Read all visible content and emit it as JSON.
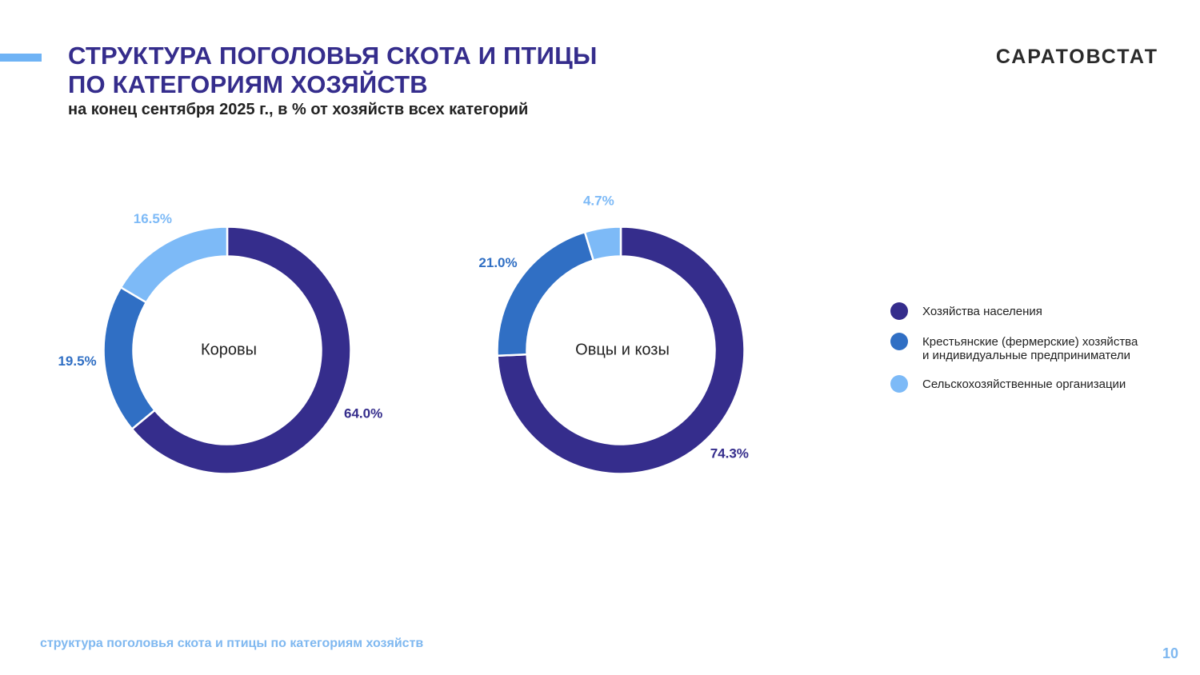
{
  "header": {
    "title_line1": "СТРУКТУРА ПОГОЛОВЬЯ СКОТА И ПТИЦЫ",
    "title_line2": "ПО КАТЕГОРИЯМ ХОЗЯЙСТВ",
    "subtitle": "на конец сентября 2025 г., в % от хозяйств всех категорий",
    "logo": "САРАТОВСТАТ"
  },
  "colors": {
    "households": "#352d8c",
    "farms": "#306fc4",
    "organizations": "#7dbaf7",
    "accent": "#6fb3f5"
  },
  "legend": [
    {
      "label": "Хозяйства населения",
      "color": "#352d8c"
    },
    {
      "label": "Крестьянские (фермерские) хозяйства\nи индивидуальные предприниматели",
      "color": "#306fc4"
    },
    {
      "label": "Сельскохозяйственные организации",
      "color": "#7dbaf7"
    }
  ],
  "chart_data": [
    {
      "type": "pie",
      "center_label": "Коровы",
      "slices": [
        {
          "category": "Хозяйства населения",
          "value": 64.0,
          "label": "64.0%",
          "color": "#352d8c"
        },
        {
          "category": "Крестьянские (фермерские) хозяйства и индивидуальные предприниматели",
          "value": 19.5,
          "label": "19.5%",
          "color": "#306fc4"
        },
        {
          "category": "Сельскохозяйственные организации",
          "value": 16.5,
          "label": "16.5%",
          "color": "#7dbaf7"
        }
      ]
    },
    {
      "type": "pie",
      "center_label": "Овцы и козы",
      "slices": [
        {
          "category": "Хозяйства населения",
          "value": 74.3,
          "label": "74.3%",
          "color": "#352d8c"
        },
        {
          "category": "Крестьянские (фермерские) хозяйства и индивидуальные предприниматели",
          "value": 21.0,
          "label": "21.0%",
          "color": "#306fc4"
        },
        {
          "category": "Сельскохозяйственные организации",
          "value": 4.7,
          "label": "4.7%",
          "color": "#7dbaf7"
        }
      ]
    }
  ],
  "footer": {
    "caption": "структура поголовья скота и птицы по категориям хозяйств",
    "page_number": "10"
  }
}
